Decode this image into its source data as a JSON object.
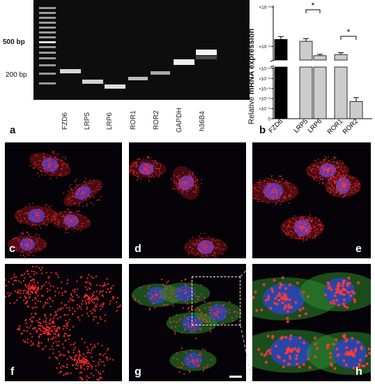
{
  "gel": {
    "markers": [
      {
        "label": "500 bp",
        "bold": true
      },
      {
        "label": "200 bp",
        "bold": false
      }
    ],
    "lanes": [
      "FZD6",
      "LRP5",
      "LRP6",
      "ROR1",
      "ROR2",
      "GAPDH",
      "h36B4"
    ]
  },
  "panel_letters": [
    "a",
    "b",
    "c",
    "d",
    "e",
    "f",
    "g",
    "h"
  ],
  "chart_data": {
    "type": "bar",
    "ylabel_plain": "Relative ",
    "ylabel_bold": "mRNA expression",
    "categories": [
      "FZD6",
      "LRP5",
      "LRP6",
      "ROR1",
      "ROR2"
    ],
    "values": [
      0.015,
      0.0135,
      0.0058,
      0.0062,
      3.4e-06
    ],
    "errors": [
      0.0028,
      0.0022,
      0.0005,
      0.0007,
      8e-07
    ],
    "bar_colors": [
      "#000000",
      "#cccccc",
      "#cccccc",
      "#cccccc",
      "#cccccc"
    ],
    "upper_ticks": [
      "10×10⁻²",
      "1×10⁻²"
    ],
    "lower_ticks": [
      "1×10⁻⁵",
      "8×10⁻⁶",
      "6×10⁻⁶",
      "4×10⁻⁶",
      "2×10⁻⁶",
      "0"
    ],
    "significance": [
      {
        "pair": [
          "LRP5",
          "LRP6"
        ],
        "label": "*"
      },
      {
        "pair": [
          "ROR1",
          "ROR2"
        ],
        "label": "*"
      }
    ],
    "axis_break": true
  }
}
